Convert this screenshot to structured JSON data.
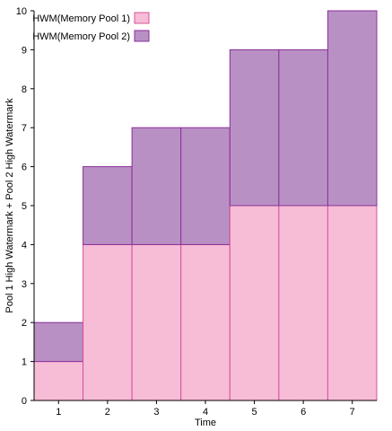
{
  "chart_data": {
    "type": "bar",
    "stacked": true,
    "categories": [
      "1",
      "2",
      "3",
      "4",
      "5",
      "6",
      "7"
    ],
    "series": [
      {
        "name": "HWM(Memory Pool 1)",
        "values": [
          1,
          4,
          4,
          4,
          5,
          5,
          5
        ],
        "color": "#f7bcd6",
        "stroke": "#d4549a"
      },
      {
        "name": "HWM(Memory Pool 2)",
        "values": [
          1,
          2,
          3,
          3,
          4,
          4,
          5
        ],
        "color": "#b990c3",
        "stroke": "#8b2f9a"
      }
    ],
    "xlabel": "Time",
    "ylabel": "Pool 1 High Watermark + Pool 2 High Watermark",
    "ylim": [
      0,
      10
    ],
    "yticks": [
      "0",
      "1",
      "2",
      "3",
      "4",
      "5",
      "6",
      "7",
      "8",
      "9",
      "10"
    ],
    "grid": false,
    "legend_position": "top-left"
  }
}
